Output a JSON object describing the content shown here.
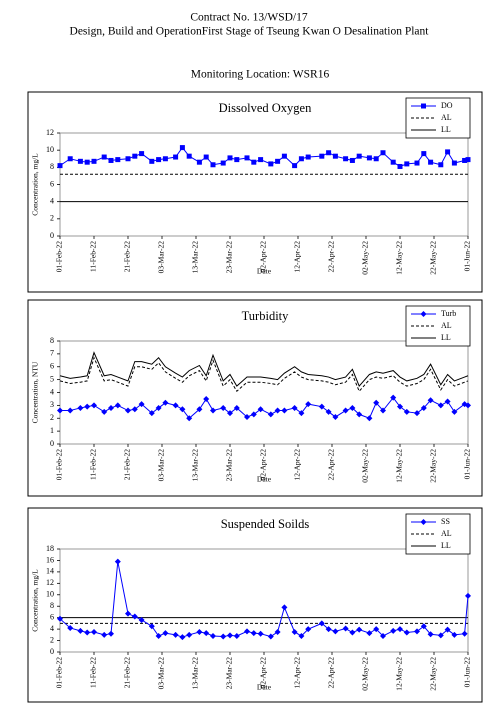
{
  "header": {
    "line1": "Contract No. 13/WSD/17",
    "line2": "Design, Build and OperationFirst Stage  of Tseung Kwan O Desalination Plant",
    "location": "Monitoring Location: WSR16"
  },
  "chart_data": [
    {
      "type": "line",
      "title": "Dissolved Oxygen",
      "xlabel": "Date",
      "ylabel": "Concentration, mg/L",
      "x": [
        "2022-02-01",
        "2022-02-04",
        "2022-02-07",
        "2022-02-09",
        "2022-02-11",
        "2022-02-14",
        "2022-02-16",
        "2022-02-18",
        "2022-02-21",
        "2022-02-23",
        "2022-02-25",
        "2022-02-28",
        "2022-03-02",
        "2022-03-04",
        "2022-03-07",
        "2022-03-09",
        "2022-03-11",
        "2022-03-14",
        "2022-03-16",
        "2022-03-18",
        "2022-03-21",
        "2022-03-23",
        "2022-03-25",
        "2022-03-28",
        "2022-03-30",
        "2022-04-01",
        "2022-04-04",
        "2022-04-06",
        "2022-04-08",
        "2022-04-11",
        "2022-04-13",
        "2022-04-15",
        "2022-04-19",
        "2022-04-21",
        "2022-04-23",
        "2022-04-26",
        "2022-04-28",
        "2022-04-30",
        "2022-05-03",
        "2022-05-05",
        "2022-05-07",
        "2022-05-10",
        "2022-05-12",
        "2022-05-14",
        "2022-05-17",
        "2022-05-19",
        "2022-05-21",
        "2022-05-24",
        "2022-05-26",
        "2022-05-28",
        "2022-05-31",
        "2022-06-01"
      ],
      "xlim": [
        "2022-02-01",
        "2022-06-01"
      ],
      "xticks": [
        {
          "value": "2022-02-01",
          "label": "01-Feb-22"
        },
        {
          "value": "2022-02-11",
          "label": "11-Feb-22"
        },
        {
          "value": "2022-02-21",
          "label": "21-Feb-22"
        },
        {
          "value": "2022-03-03",
          "label": "03-Mar-22"
        },
        {
          "value": "2022-03-13",
          "label": "13-Mar-22"
        },
        {
          "value": "2022-03-23",
          "label": "23-Mar-22"
        },
        {
          "value": "2022-04-02",
          "label": "02-Apr-22"
        },
        {
          "value": "2022-04-12",
          "label": "12-Apr-22"
        },
        {
          "value": "2022-04-22",
          "label": "22-Apr-22"
        },
        {
          "value": "2022-05-02",
          "label": "02-May-22"
        },
        {
          "value": "2022-05-12",
          "label": "12-May-22"
        },
        {
          "value": "2022-05-22",
          "label": "22-May-22"
        },
        {
          "value": "2022-06-01",
          "label": "01-Jun-22"
        }
      ],
      "ylim": [
        0,
        12
      ],
      "yticks": [
        0,
        2,
        4,
        6,
        8,
        10,
        12
      ],
      "series": [
        {
          "name": "DO",
          "color": "#0000ff",
          "marker": "square",
          "style": "solid",
          "values": [
            8.2,
            9.0,
            8.7,
            8.6,
            8.7,
            9.2,
            8.8,
            8.9,
            9.0,
            9.3,
            9.6,
            8.7,
            8.9,
            9.0,
            9.2,
            10.3,
            9.3,
            8.6,
            9.2,
            8.3,
            8.5,
            9.1,
            8.9,
            9.1,
            8.6,
            8.9,
            8.4,
            8.7,
            9.3,
            8.2,
            9.0,
            9.2,
            9.3,
            9.7,
            9.3,
            9.0,
            8.8,
            9.3,
            9.1,
            9.0,
            9.7,
            8.6,
            8.1,
            8.4,
            8.5,
            9.6,
            8.6,
            8.3,
            9.8,
            8.5,
            8.8,
            8.9
          ]
        }
      ],
      "reference_lines": [
        {
          "name": "AL",
          "value": 7.2,
          "color": "#000000",
          "style": "dashed"
        },
        {
          "name": "LL",
          "value": 4,
          "color": "#000000",
          "style": "solid"
        }
      ]
    },
    {
      "type": "line",
      "title": "Turbidity",
      "xlabel": "Date",
      "ylabel": "Concentration, NTU",
      "x": [
        "2022-02-01",
        "2022-02-04",
        "2022-02-07",
        "2022-02-09",
        "2022-02-11",
        "2022-02-14",
        "2022-02-16",
        "2022-02-18",
        "2022-02-21",
        "2022-02-23",
        "2022-02-25",
        "2022-02-28",
        "2022-03-02",
        "2022-03-04",
        "2022-03-07",
        "2022-03-09",
        "2022-03-11",
        "2022-03-14",
        "2022-03-16",
        "2022-03-18",
        "2022-03-21",
        "2022-03-23",
        "2022-03-25",
        "2022-03-28",
        "2022-03-30",
        "2022-04-01",
        "2022-04-04",
        "2022-04-06",
        "2022-04-08",
        "2022-04-11",
        "2022-04-13",
        "2022-04-15",
        "2022-04-19",
        "2022-04-21",
        "2022-04-23",
        "2022-04-26",
        "2022-04-28",
        "2022-04-30",
        "2022-05-03",
        "2022-05-05",
        "2022-05-07",
        "2022-05-10",
        "2022-05-12",
        "2022-05-14",
        "2022-05-17",
        "2022-05-19",
        "2022-05-21",
        "2022-05-24",
        "2022-05-26",
        "2022-05-28",
        "2022-05-31",
        "2022-06-01"
      ],
      "xlim": [
        "2022-02-01",
        "2022-06-01"
      ],
      "xticks": [
        {
          "value": "2022-02-01",
          "label": "01-Feb-22"
        },
        {
          "value": "2022-02-11",
          "label": "11-Feb-22"
        },
        {
          "value": "2022-02-21",
          "label": "21-Feb-22"
        },
        {
          "value": "2022-03-03",
          "label": "03-Mar-22"
        },
        {
          "value": "2022-03-13",
          "label": "13-Mar-22"
        },
        {
          "value": "2022-03-23",
          "label": "23-Mar-22"
        },
        {
          "value": "2022-04-02",
          "label": "02-Apr-22"
        },
        {
          "value": "2022-04-12",
          "label": "12-Apr-22"
        },
        {
          "value": "2022-04-22",
          "label": "22-Apr-22"
        },
        {
          "value": "2022-05-02",
          "label": "02-May-22"
        },
        {
          "value": "2022-05-12",
          "label": "12-May-22"
        },
        {
          "value": "2022-05-22",
          "label": "22-May-22"
        },
        {
          "value": "2022-06-01",
          "label": "01-Jun-22"
        }
      ],
      "ylim": [
        0,
        8
      ],
      "yticks": [
        0,
        1,
        2,
        3,
        4,
        5,
        6,
        7,
        8
      ],
      "series": [
        {
          "name": "Turb",
          "color": "#0000ff",
          "marker": "diamond",
          "style": "solid",
          "values": [
            2.6,
            2.6,
            2.8,
            2.9,
            3.0,
            2.5,
            2.8,
            3.0,
            2.6,
            2.7,
            3.1,
            2.4,
            2.8,
            3.2,
            3.0,
            2.7,
            2.0,
            2.7,
            3.5,
            2.6,
            2.8,
            2.4,
            2.8,
            2.1,
            2.3,
            2.7,
            2.3,
            2.6,
            2.6,
            2.8,
            2.4,
            3.1,
            2.9,
            2.5,
            2.1,
            2.6,
            2.8,
            2.3,
            2.0,
            3.2,
            2.6,
            3.6,
            2.9,
            2.5,
            2.4,
            2.8,
            3.4,
            3.0,
            3.3,
            2.5,
            3.1,
            3.0
          ]
        },
        {
          "name": "AL",
          "color": "#000000",
          "marker": null,
          "style": "dashed",
          "values": [
            4.9,
            4.7,
            4.8,
            4.9,
            6.7,
            4.9,
            5.0,
            4.8,
            4.5,
            6.0,
            6.0,
            5.8,
            6.3,
            5.6,
            5.1,
            4.8,
            5.3,
            5.7,
            4.9,
            6.5,
            4.5,
            5.0,
            4.1,
            4.8,
            4.8,
            4.8,
            4.7,
            4.6,
            5.1,
            5.6,
            5.2,
            5.0,
            4.9,
            4.8,
            4.6,
            4.8,
            5.4,
            4.1,
            5.0,
            5.2,
            5.1,
            5.3,
            4.8,
            4.5,
            4.7,
            5.0,
            5.8,
            4.2,
            5.0,
            4.5,
            4.8,
            4.9
          ]
        },
        {
          "name": "LL",
          "color": "#000000",
          "marker": null,
          "style": "solid",
          "values": [
            5.3,
            5.1,
            5.2,
            5.3,
            7.1,
            5.3,
            5.4,
            5.2,
            4.9,
            6.4,
            6.4,
            6.2,
            6.7,
            6.0,
            5.5,
            5.2,
            5.7,
            6.1,
            5.3,
            6.9,
            4.9,
            5.4,
            4.5,
            5.2,
            5.2,
            5.2,
            5.1,
            5.0,
            5.5,
            6.0,
            5.6,
            5.4,
            5.3,
            5.2,
            5.0,
            5.2,
            5.8,
            4.5,
            5.4,
            5.6,
            5.5,
            5.7,
            5.2,
            4.9,
            5.1,
            5.4,
            6.2,
            4.6,
            5.4,
            4.9,
            5.2,
            5.3
          ]
        }
      ],
      "reference_lines": []
    },
    {
      "type": "line",
      "title": "Suspended Soilds",
      "xlabel": "Date",
      "ylabel": "Concentration, mg/L",
      "x": [
        "2022-02-01",
        "2022-02-04",
        "2022-02-07",
        "2022-02-09",
        "2022-02-11",
        "2022-02-14",
        "2022-02-16",
        "2022-02-18",
        "2022-02-21",
        "2022-02-23",
        "2022-02-25",
        "2022-02-28",
        "2022-03-02",
        "2022-03-04",
        "2022-03-07",
        "2022-03-09",
        "2022-03-11",
        "2022-03-14",
        "2022-03-16",
        "2022-03-18",
        "2022-03-21",
        "2022-03-23",
        "2022-03-25",
        "2022-03-28",
        "2022-03-30",
        "2022-04-01",
        "2022-04-04",
        "2022-04-06",
        "2022-04-08",
        "2022-04-11",
        "2022-04-13",
        "2022-04-15",
        "2022-04-19",
        "2022-04-21",
        "2022-04-23",
        "2022-04-26",
        "2022-04-28",
        "2022-04-30",
        "2022-05-03",
        "2022-05-05",
        "2022-05-07",
        "2022-05-10",
        "2022-05-12",
        "2022-05-14",
        "2022-05-17",
        "2022-05-19",
        "2022-05-21",
        "2022-05-24",
        "2022-05-26",
        "2022-05-28",
        "2022-05-31",
        "2022-06-01"
      ],
      "xlim": [
        "2022-02-01",
        "2022-06-01"
      ],
      "xticks": [
        {
          "value": "2022-02-01",
          "label": "01-Feb-22"
        },
        {
          "value": "2022-02-11",
          "label": "11-Feb-22"
        },
        {
          "value": "2022-02-21",
          "label": "21-Feb-22"
        },
        {
          "value": "2022-03-03",
          "label": "03-Mar-22"
        },
        {
          "value": "2022-03-13",
          "label": "13-Mar-22"
        },
        {
          "value": "2022-03-23",
          "label": "23-Mar-22"
        },
        {
          "value": "2022-04-02",
          "label": "02-Apr-22"
        },
        {
          "value": "2022-04-12",
          "label": "12-Apr-22"
        },
        {
          "value": "2022-04-22",
          "label": "22-Apr-22"
        },
        {
          "value": "2022-05-02",
          "label": "02-May-22"
        },
        {
          "value": "2022-05-12",
          "label": "12-May-22"
        },
        {
          "value": "2022-05-22",
          "label": "22-May-22"
        },
        {
          "value": "2022-06-01",
          "label": "01-Jun-22"
        }
      ],
      "ylim": [
        0,
        18
      ],
      "yticks": [
        0,
        2,
        4,
        6,
        8,
        10,
        12,
        14,
        16,
        18
      ],
      "series": [
        {
          "name": "SS",
          "color": "#0000ff",
          "marker": "diamond",
          "style": "solid",
          "values": [
            5.8,
            4.2,
            3.7,
            3.4,
            3.5,
            3.0,
            3.2,
            15.8,
            6.7,
            6.2,
            5.6,
            4.5,
            2.8,
            3.3,
            3.0,
            2.6,
            3.0,
            3.5,
            3.3,
            2.8,
            2.7,
            2.9,
            2.8,
            3.6,
            3.3,
            3.2,
            2.7,
            3.5,
            7.8,
            3.5,
            2.8,
            4.0,
            5.0,
            4.0,
            3.6,
            4.1,
            3.4,
            3.9,
            3.3,
            4.0,
            2.8,
            3.7,
            4.0,
            3.4,
            3.6,
            4.5,
            3.1,
            2.9,
            3.9,
            3.0,
            3.2,
            9.8
          ]
        }
      ],
      "reference_lines": [
        {
          "name": "AL",
          "value": 5,
          "color": "#000000",
          "style": "dashed"
        },
        {
          "name": "LL",
          "value": 6,
          "color": "#000000",
          "style": "solid"
        }
      ]
    }
  ]
}
